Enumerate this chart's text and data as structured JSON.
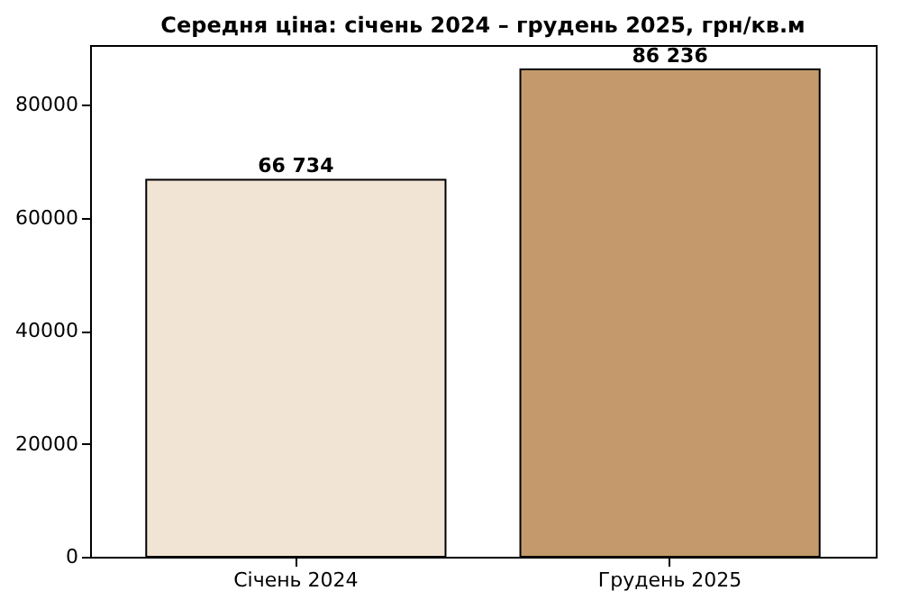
{
  "chart_data": {
    "type": "bar",
    "title": "Середня ціна: січень 2024 – грудень 2025, грн/кв.м",
    "categories": [
      "Січень 2024",
      "Грудень 2025"
    ],
    "values": [
      66734,
      86236
    ],
    "colors": [
      "#f2e4d4",
      "#c49a6c"
    ],
    "value_labels": [
      "66 734",
      "86 236"
    ],
    "ylim": [
      0,
      90548
    ],
    "yticks": [
      0,
      20000,
      40000,
      60000,
      80000
    ],
    "grid": false
  }
}
